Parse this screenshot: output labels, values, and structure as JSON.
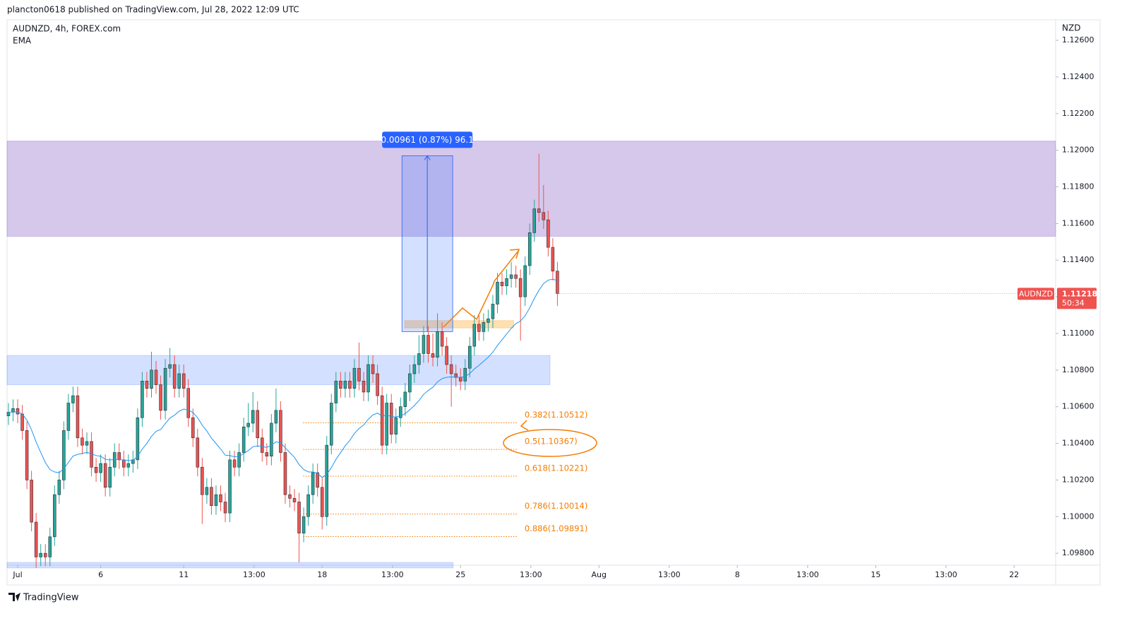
{
  "header": "plancton0618 published on TradingView.com, Jul 28, 2022 12:09 UTC",
  "footer": "TradingView",
  "chart_data": {
    "type": "candlestick",
    "symbol": "AUDNZD, 4h, FOREX.com",
    "indicator": "EMA",
    "currency": "NZD",
    "price_tag": {
      "symbol": "AUDNZD",
      "price": "1.11218",
      "countdown": "50:34"
    },
    "up_color": "#26a69a",
    "down_color": "#ef5350",
    "ema_color": "#2196f3",
    "ylim": [
      1.09735,
      1.12712
    ],
    "yticks": [
      {
        "value": 1.126,
        "label": "1.12600"
      },
      {
        "value": 1.124,
        "label": "1.12400"
      },
      {
        "value": 1.122,
        "label": "1.12200"
      },
      {
        "value": 1.12,
        "label": "1.12000"
      },
      {
        "value": 1.118,
        "label": "1.11800"
      },
      {
        "value": 1.116,
        "label": "1.11600"
      },
      {
        "value": 1.114,
        "label": "1.11400"
      },
      {
        "value": 1.112,
        "label": "1.11200"
      },
      {
        "value": 1.11,
        "label": "1.11000"
      },
      {
        "value": 1.108,
        "label": "1.10800"
      },
      {
        "value": 1.106,
        "label": "1.10600"
      },
      {
        "value": 1.104,
        "label": "1.10400"
      },
      {
        "value": 1.102,
        "label": "1.10200"
      },
      {
        "value": 1.1,
        "label": "1.10000"
      },
      {
        "value": 1.098,
        "label": "1.09800"
      }
    ],
    "xlim": [
      -0.3,
      227
    ],
    "xticks": [
      {
        "value": 2,
        "label": "Jul"
      },
      {
        "value": 20,
        "label": "6"
      },
      {
        "value": 38,
        "label": "11"
      },
      {
        "value": 53.25,
        "label": "13:00"
      },
      {
        "value": 68,
        "label": "18"
      },
      {
        "value": 83.25,
        "label": "13:00"
      },
      {
        "value": 98,
        "label": "25"
      },
      {
        "value": 113.25,
        "label": "13:00"
      },
      {
        "value": 128,
        "label": "Aug"
      },
      {
        "value": 143.25,
        "label": "13:00"
      },
      {
        "value": 158,
        "label": "8"
      },
      {
        "value": 173.25,
        "label": "13:00"
      },
      {
        "value": 188,
        "label": "15"
      },
      {
        "value": 203.25,
        "label": "13:00"
      },
      {
        "value": 218,
        "label": "22"
      }
    ],
    "open": [
      1.1055,
      1.1057,
      1.1059,
      1.1056,
      1.1047,
      1.102,
      1.0997,
      1.0978,
      1.098,
      1.0978,
      1.0989,
      1.1012,
      1.102,
      1.1047,
      1.1062,
      1.1066,
      1.1043,
      1.1039,
      1.1041,
      1.1027,
      1.1024,
      1.1029,
      1.1016,
      1.1027,
      1.1035,
      1.1031,
      1.1027,
      1.1029,
      1.1031,
      1.1054,
      1.1074,
      1.107,
      1.108,
      1.1072,
      1.1058,
      1.1081,
      1.1083,
      1.107,
      1.1078,
      1.107,
      1.1054,
      1.1043,
      1.1027,
      1.1012,
      1.1016,
      1.1006,
      1.1012,
      1.1008,
      1.1002,
      1.1031,
      1.1027,
      1.1035,
      1.1049,
      1.1051,
      1.1058,
      1.1043,
      1.1035,
      1.1033,
      1.1051,
      1.1058,
      1.1035,
      1.1012,
      1.101,
      1.1008,
      1.0991,
      1.1,
      1.1012,
      1.1024,
      1.1016,
      1.1,
      1.1039,
      1.1062,
      1.1074,
      1.107,
      1.1074,
      1.107,
      1.1081,
      1.1074,
      1.1068,
      1.1083,
      1.1078,
      1.1066,
      1.1039,
      1.1062,
      1.1045,
      1.1054,
      1.106,
      1.1068,
      1.1078,
      1.1083,
      1.1089,
      1.1099,
      1.1089,
      1.1087,
      1.1101,
      1.1093,
      1.1083,
      1.1078,
      1.1076,
      1.1074,
      1.1081,
      1.1093,
      1.1105,
      1.1101,
      1.1106,
      1.1108,
      1.1116,
      1.1128,
      1.1126,
      1.113,
      1.1132,
      1.113,
      1.112,
      1.1137,
      1.1155,
      1.1168,
      1.1166,
      1.1162,
      1.1147,
      1.1134
    ],
    "high": [
      1.1062,
      1.1064,
      1.1064,
      1.1061,
      1.1052,
      1.1025,
      1.1002,
      1.0985,
      1.0985,
      1.0994,
      1.1017,
      1.1025,
      1.1052,
      1.1067,
      1.1071,
      1.1071,
      1.1048,
      1.1046,
      1.1046,
      1.1032,
      1.1034,
      1.1034,
      1.1032,
      1.104,
      1.104,
      1.1036,
      1.1034,
      1.1036,
      1.1059,
      1.1079,
      1.1079,
      1.109,
      1.1085,
      1.1077,
      1.1086,
      1.1092,
      1.1088,
      1.1083,
      1.1083,
      1.1075,
      1.1059,
      1.1048,
      1.1032,
      1.1021,
      1.1021,
      1.1017,
      1.1017,
      1.1013,
      1.1036,
      1.1036,
      1.104,
      1.1054,
      1.1062,
      1.1068,
      1.1063,
      1.1048,
      1.104,
      1.1056,
      1.107,
      1.1063,
      1.104,
      1.1017,
      1.1015,
      1.1013,
      1.1005,
      1.1017,
      1.1029,
      1.1029,
      1.1021,
      1.1044,
      1.1067,
      1.1079,
      1.1079,
      1.1079,
      1.1079,
      1.1086,
      1.1095,
      1.1079,
      1.1088,
      1.1088,
      1.1083,
      1.1071,
      1.1067,
      1.1067,
      1.1059,
      1.1065,
      1.1073,
      1.1083,
      1.1088,
      1.1099,
      1.1104,
      1.1104,
      1.11,
      1.1111,
      1.1106,
      1.1098,
      1.1088,
      1.1083,
      1.1081,
      1.1086,
      1.1098,
      1.111,
      1.111,
      1.1111,
      1.1113,
      1.1121,
      1.1133,
      1.1133,
      1.1135,
      1.1139,
      1.1137,
      1.1135,
      1.1142,
      1.116,
      1.1173,
      1.1198,
      1.1181,
      1.1167,
      1.1152,
      1.1139
    ],
    "low": [
      1.105,
      1.1052,
      1.1051,
      1.1042,
      1.1015,
      1.0992,
      1.0972,
      1.0973,
      1.0973,
      1.0973,
      1.0984,
      1.1007,
      1.1015,
      1.1042,
      1.1057,
      1.1038,
      1.1034,
      1.1034,
      1.1022,
      1.1019,
      1.1019,
      1.1011,
      1.1011,
      1.1022,
      1.1026,
      1.1022,
      1.1022,
      1.1024,
      1.1026,
      1.1049,
      1.1065,
      1.1065,
      1.1067,
      1.1053,
      1.1053,
      1.1076,
      1.1065,
      1.1065,
      1.1065,
      1.1049,
      1.1038,
      1.1022,
      1.0996,
      1.1007,
      1.1001,
      1.1001,
      1.1003,
      1.0997,
      1.0997,
      1.1022,
      1.1022,
      1.103,
      1.1044,
      1.1046,
      1.1038,
      1.103,
      1.1028,
      1.1028,
      1.1046,
      1.103,
      1.1007,
      1.1005,
      1.1003,
      1.0975,
      1.0986,
      1.0995,
      1.1007,
      1.1011,
      1.0993,
      1.0995,
      1.1034,
      1.1057,
      1.1065,
      1.1065,
      1.1065,
      1.1065,
      1.1069,
      1.1063,
      1.1063,
      1.1073,
      1.1061,
      1.1034,
      1.1034,
      1.104,
      1.104,
      1.1049,
      1.1055,
      1.1063,
      1.1073,
      1.1078,
      1.1084,
      1.1084,
      1.1082,
      1.1082,
      1.1088,
      1.1078,
      1.106,
      1.1071,
      1.1069,
      1.1069,
      1.1076,
      1.1088,
      1.1096,
      1.1096,
      1.1101,
      1.1103,
      1.1111,
      1.1121,
      1.1121,
      1.1125,
      1.1125,
      1.1096,
      1.1115,
      1.1132,
      1.115,
      1.1161,
      1.1157,
      1.1142,
      1.1129,
      1.1115
    ],
    "close": [
      1.1057,
      1.1059,
      1.1056,
      1.1047,
      1.102,
      1.0997,
      1.0978,
      1.098,
      1.0978,
      1.0989,
      1.1012,
      1.102,
      1.1047,
      1.1062,
      1.1066,
      1.1043,
      1.1039,
      1.1041,
      1.1027,
      1.1024,
      1.1029,
      1.1016,
      1.1027,
      1.1035,
      1.1031,
      1.1027,
      1.1029,
      1.1031,
      1.1054,
      1.1074,
      1.107,
      1.108,
      1.1072,
      1.1058,
      1.1081,
      1.1083,
      1.107,
      1.1078,
      1.107,
      1.1054,
      1.1043,
      1.1027,
      1.1012,
      1.1016,
      1.1006,
      1.1012,
      1.1008,
      1.1002,
      1.1031,
      1.1027,
      1.1035,
      1.1049,
      1.1051,
      1.1058,
      1.1043,
      1.1035,
      1.1033,
      1.1051,
      1.1058,
      1.1035,
      1.1012,
      1.101,
      1.1008,
      1.0991,
      1.1,
      1.1012,
      1.1024,
      1.1016,
      1.1,
      1.1039,
      1.1062,
      1.1074,
      1.107,
      1.1074,
      1.107,
      1.1081,
      1.1074,
      1.1068,
      1.1083,
      1.1078,
      1.1066,
      1.1039,
      1.1062,
      1.1045,
      1.1054,
      1.106,
      1.1068,
      1.1078,
      1.1083,
      1.1089,
      1.1099,
      1.1089,
      1.1087,
      1.1101,
      1.1093,
      1.1083,
      1.1078,
      1.1076,
      1.1074,
      1.1081,
      1.1093,
      1.1105,
      1.1101,
      1.1106,
      1.1108,
      1.1116,
      1.1128,
      1.1126,
      1.113,
      1.1132,
      1.113,
      1.112,
      1.1137,
      1.1155,
      1.1168,
      1.1166,
      1.1162,
      1.1147,
      1.1134,
      1.11218
    ],
    "zones": [
      {
        "ylim": [
          1.1153,
          1.1205
        ],
        "xlim": [
          -0.3,
          227
        ],
        "color": "rgba(149,117,205,0.4)"
      },
      {
        "ylim": [
          1.1072,
          1.1088
        ],
        "xlim": [
          -0.3,
          117.4
        ],
        "color": "rgba(41,98,255,0.2)"
      },
      {
        "ylim": [
          1.0972,
          1.0975
        ],
        "xlim": [
          -0.3,
          96.4
        ],
        "color": "rgba(41,98,255,0.2)"
      },
      {
        "ylim": [
          1.1103,
          1.1107
        ],
        "xlim": [
          85.9,
          109.5
        ],
        "color": "rgba(255,152,0,0.3)"
      }
    ],
    "measure": {
      "label": "0.00961 (0.87%) 96.1",
      "ylim": [
        1.1101,
        1.1197
      ],
      "xlim": [
        85.3,
        96.3
      ]
    },
    "fib_levels": [
      {
        "label": "0.382(1.10512)",
        "value": 1.10512
      },
      {
        "label": "0.5(1.10367)",
        "value": 1.10367
      },
      {
        "label": "0.618(1.10221)",
        "value": 1.10221
      },
      {
        "label": "0.786(1.10014)",
        "value": 1.10014
      },
      {
        "label": "0.886(1.09891)",
        "value": 1.09891
      }
    ],
    "fib_xlim": [
      63.9,
      110.5
    ],
    "fib_color": "#f57c00"
  }
}
